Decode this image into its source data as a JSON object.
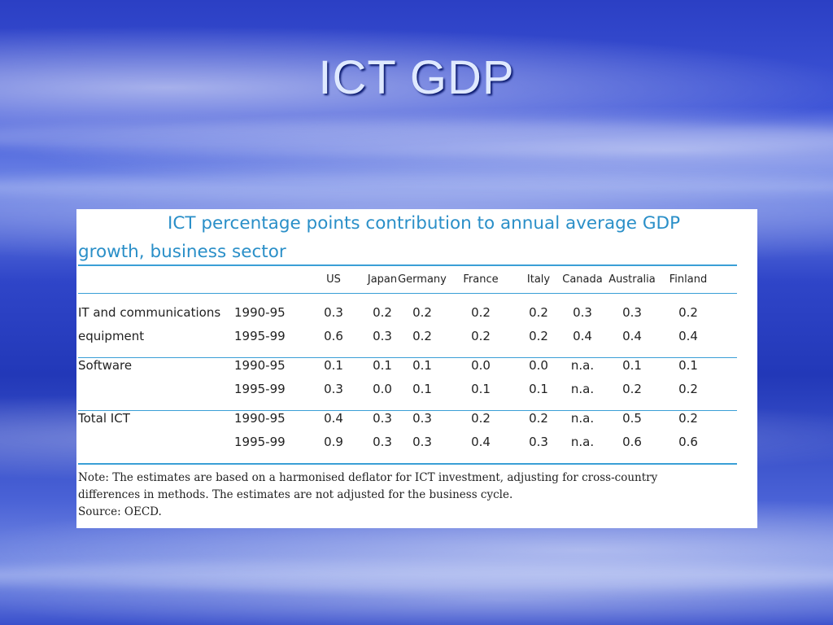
{
  "slide": {
    "title": "ICT GDP"
  },
  "table": {
    "heading_line1": "ICT percentage points contribution to annual average GDP",
    "heading_line2": "growth, business sector",
    "columns": [
      "US",
      "Japan",
      "Germany",
      "France",
      "Italy",
      "Canada",
      "Australia",
      "Finland"
    ],
    "groups": [
      {
        "label_line1": "IT and communications",
        "label_line2": "equipment",
        "rows": [
          {
            "period": "1990-95",
            "values": [
              "0.3",
              "0.2",
              "0.2",
              "0.2",
              "0.2",
              "0.3",
              "0.3",
              "0.2"
            ]
          },
          {
            "period": "1995-99",
            "values": [
              "0.6",
              "0.3",
              "0.2",
              "0.2",
              "0.2",
              "0.4",
              "0.4",
              "0.4"
            ]
          }
        ]
      },
      {
        "label_line1": "Software",
        "label_line2": "",
        "rows": [
          {
            "period": "1990-95",
            "values": [
              "0.1",
              "0.1",
              "0.1",
              "0.0",
              "0.0",
              "n.a.",
              "0.1",
              "0.1"
            ]
          },
          {
            "period": "1995-99",
            "values": [
              "0.3",
              "0.0",
              "0.1",
              "0.1",
              "0.1",
              "n.a.",
              "0.2",
              "0.2"
            ]
          }
        ]
      },
      {
        "label_line1": "Total ICT",
        "label_line2": "",
        "rows": [
          {
            "period": "1990-95",
            "values": [
              "0.4",
              "0.3",
              "0.3",
              "0.2",
              "0.2",
              "n.a.",
              "0.5",
              "0.2"
            ]
          },
          {
            "period": "1995-99",
            "values": [
              "0.9",
              "0.3",
              "0.3",
              "0.4",
              "0.3",
              "n.a.",
              "0.6",
              "0.6"
            ]
          }
        ]
      }
    ],
    "note_line1": "Note: The estimates are based on a harmonised deflator for ICT investment, adjusting for cross-country",
    "note_line2": "differences in methods. The estimates are not adjusted for the business cycle.",
    "source": "Source: OECD."
  }
}
